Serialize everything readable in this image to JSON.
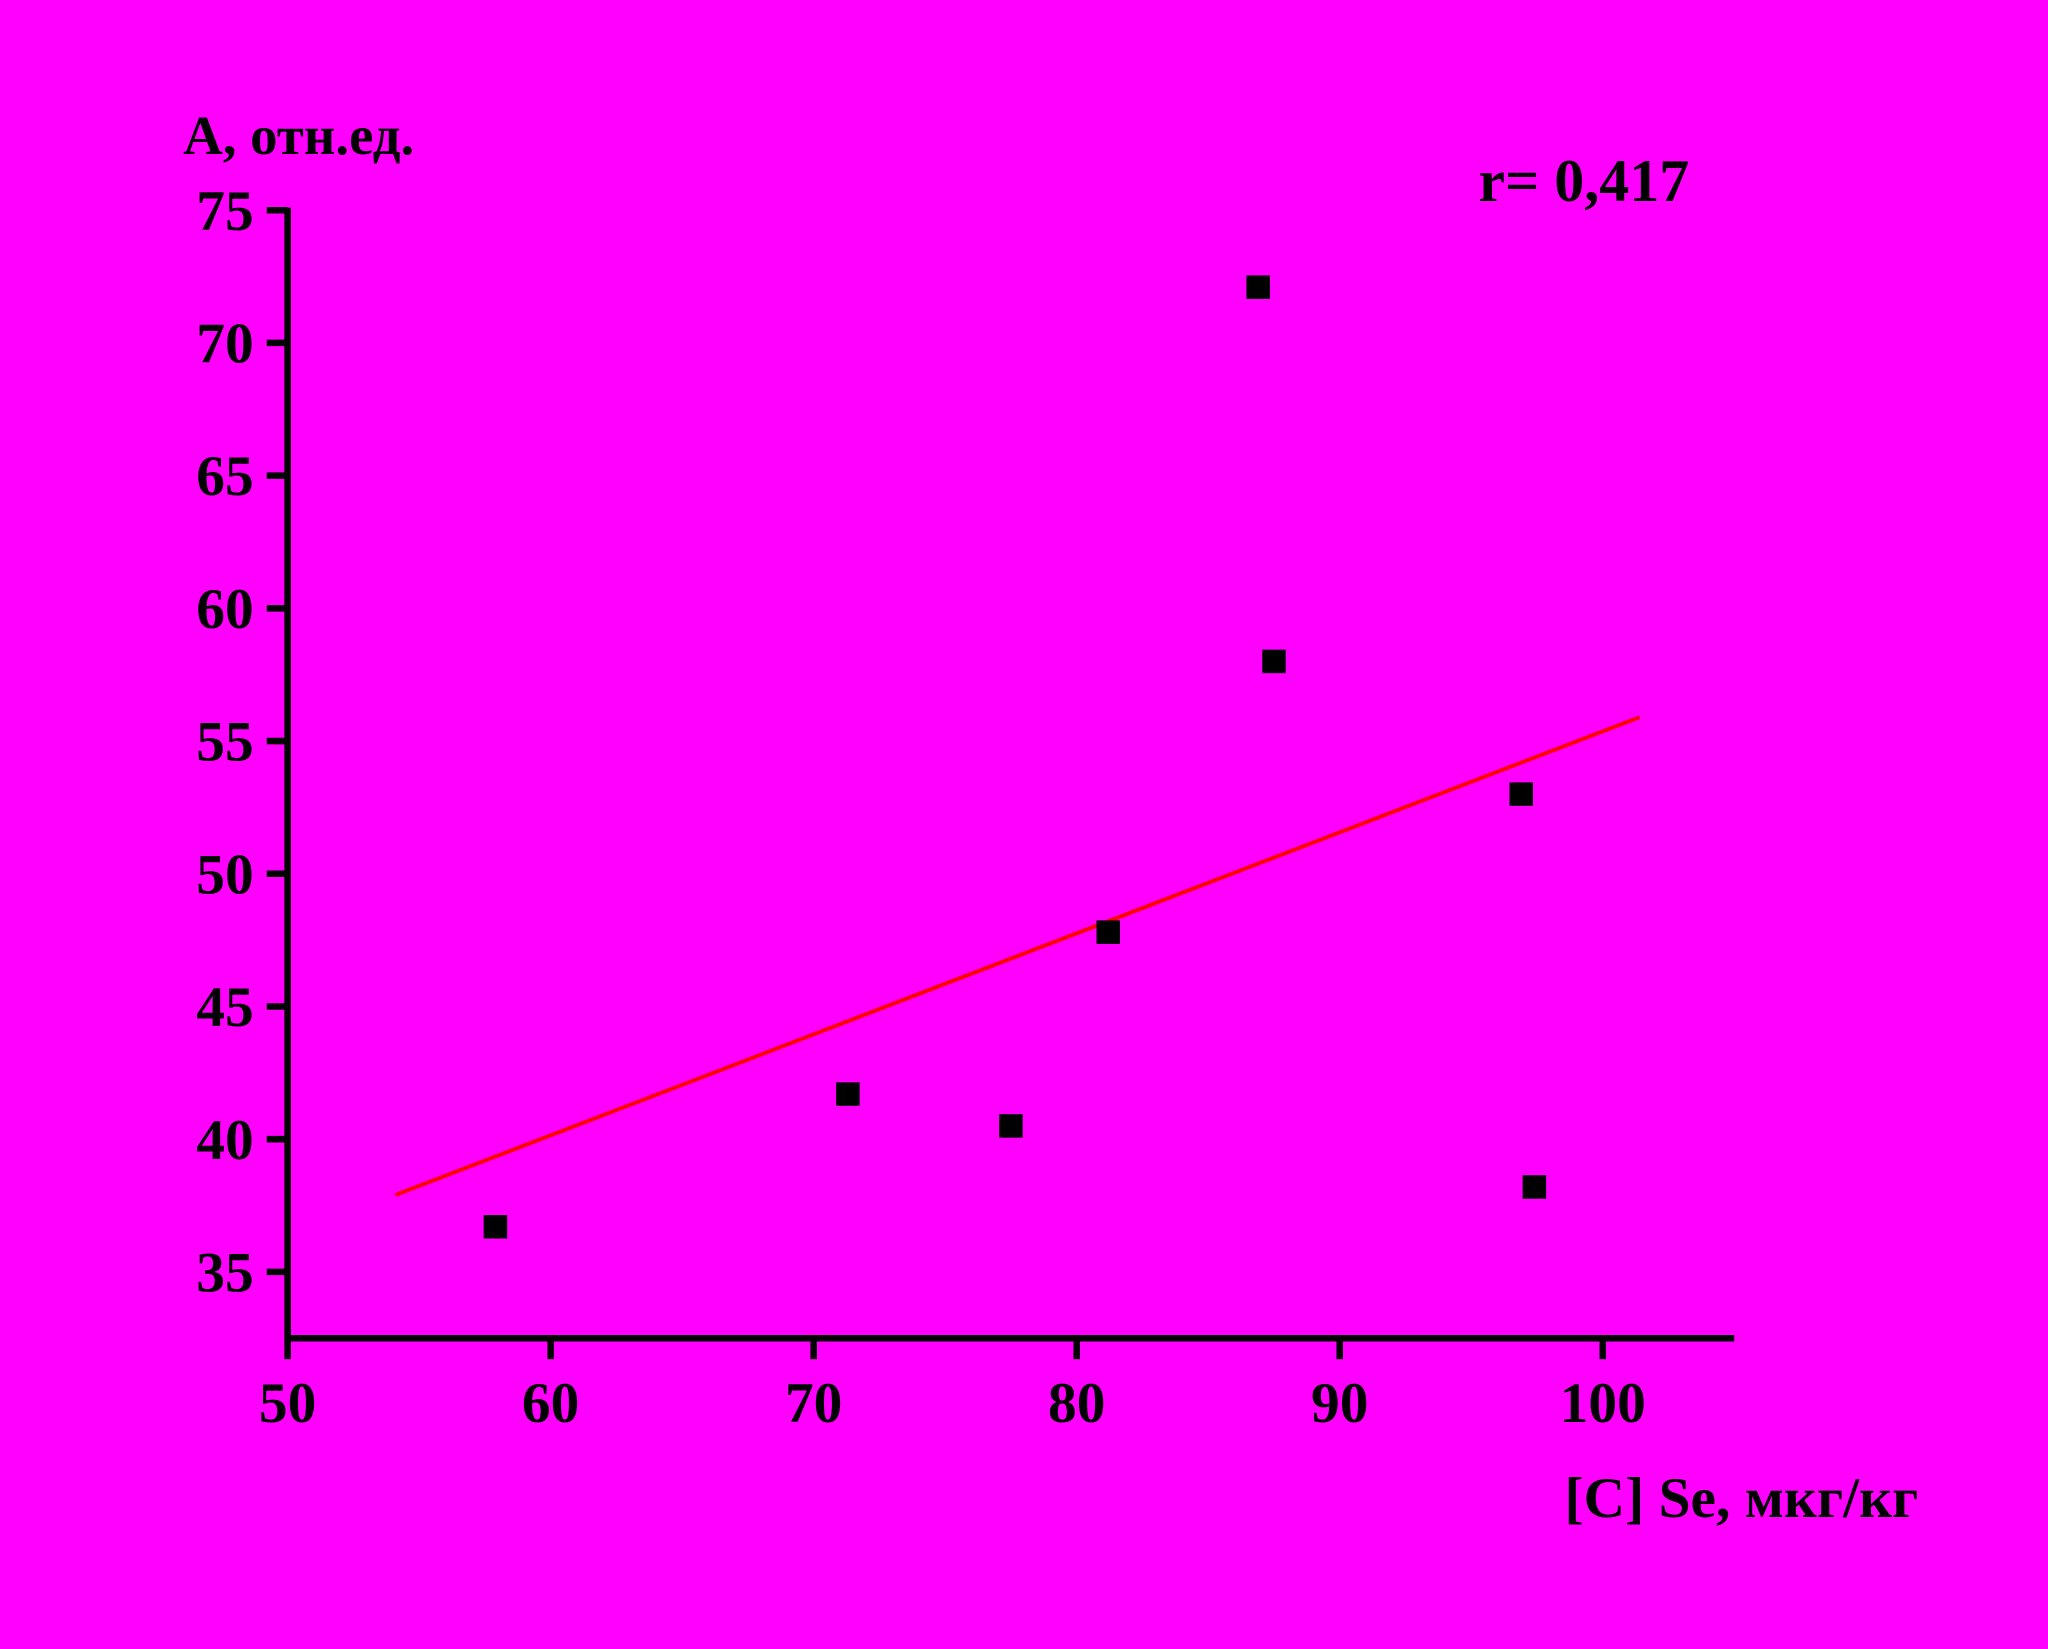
{
  "chart_data": {
    "type": "scatter",
    "y_label": "A, отн.ед.",
    "x_label": "[C] Se, мкг/кг",
    "annotation": "r= 0,417",
    "x": [
      57.9,
      71.3,
      77.5,
      81.2,
      86.9,
      87.5,
      96.9,
      97.4
    ],
    "values": [
      36.7,
      41.7,
      40.5,
      47.8,
      72.1,
      58.0,
      53.0,
      38.2
    ],
    "color": "#000000",
    "trendline": {
      "x": [
        54.1,
        101.4
      ],
      "y": [
        37.9,
        55.9
      ],
      "color": "#ff0000"
    },
    "xlim": [
      50,
      105
    ],
    "xticks": [
      50,
      60,
      70,
      80,
      90,
      100
    ],
    "ylim": [
      32.5,
      75
    ],
    "yticks": [
      35,
      40,
      45,
      50,
      55,
      60,
      65,
      70,
      75
    ],
    "background": "#ff00ff"
  }
}
